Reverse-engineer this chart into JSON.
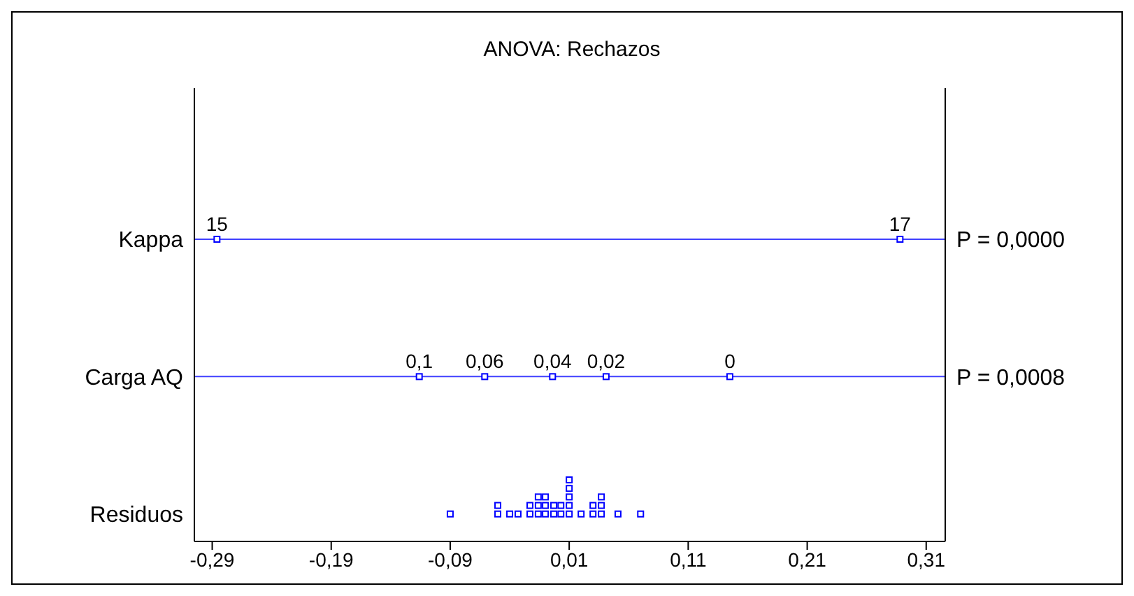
{
  "chart_data": {
    "type": "scatter",
    "orientation": "horizontal",
    "title": "ANOVA: Rechazos",
    "categories": [
      "Kappa",
      "Carga AQ",
      "Residuos"
    ],
    "series": [
      {
        "color": "#0000ff",
        "values": [
          -0.286,
          -0.116,
          -0.09
        ]
      },
      {
        "color": "#0000ff",
        "values": [
          0.288,
          -0.061,
          -0.05
        ]
      },
      {
        "color": "#0000ff",
        "values": [
          null,
          -0.004,
          -0.05
        ]
      },
      {
        "color": "#0000ff",
        "values": [
          null,
          0.041,
          -0.04
        ]
      },
      {
        "color": "#0000ff",
        "values": [
          null,
          0.145,
          -0.033
        ]
      },
      {
        "color": "#0000ff",
        "values": [
          null,
          null,
          -0.023
        ]
      },
      {
        "color": "#0000ff",
        "values": [
          null,
          null,
          -0.023
        ]
      },
      {
        "color": "#0000ff",
        "values": [
          null,
          null,
          -0.016
        ]
      },
      {
        "color": "#0000ff",
        "values": [
          null,
          null,
          -0.016
        ]
      },
      {
        "color": "#0000ff",
        "values": [
          null,
          null,
          -0.016
        ]
      },
      {
        "color": "#0000ff",
        "values": [
          null,
          null,
          -0.01
        ]
      },
      {
        "color": "#0000ff",
        "values": [
          null,
          null,
          -0.01
        ]
      },
      {
        "color": "#0000ff",
        "values": [
          null,
          null,
          -0.01
        ]
      },
      {
        "color": "#0000ff",
        "values": [
          null,
          null,
          -0.003
        ]
      },
      {
        "color": "#0000ff",
        "values": [
          null,
          null,
          -0.003
        ]
      },
      {
        "color": "#0000ff",
        "values": [
          null,
          null,
          0.003
        ]
      },
      {
        "color": "#0000ff",
        "values": [
          null,
          null,
          0.003
        ]
      },
      {
        "color": "#0000ff",
        "values": [
          null,
          null,
          0.01
        ]
      },
      {
        "color": "#0000ff",
        "values": [
          null,
          null,
          0.01
        ]
      },
      {
        "color": "#0000ff",
        "values": [
          null,
          null,
          0.01
        ]
      },
      {
        "color": "#0000ff",
        "values": [
          null,
          null,
          0.01
        ]
      },
      {
        "color": "#0000ff",
        "values": [
          null,
          null,
          0.01
        ]
      },
      {
        "color": "#0000ff",
        "values": [
          null,
          null,
          0.02
        ]
      },
      {
        "color": "#0000ff",
        "values": [
          null,
          null,
          0.03
        ]
      },
      {
        "color": "#0000ff",
        "values": [
          null,
          null,
          0.03
        ]
      },
      {
        "color": "#0000ff",
        "values": [
          null,
          null,
          0.037
        ]
      },
      {
        "color": "#0000ff",
        "values": [
          null,
          null,
          0.037
        ]
      },
      {
        "color": "#0000ff",
        "values": [
          null,
          null,
          0.037
        ]
      },
      {
        "color": "#0000ff",
        "values": [
          null,
          null,
          0.051
        ]
      },
      {
        "color": "#0000ff",
        "values": [
          null,
          null,
          0.07
        ]
      }
    ],
    "ref_lines": [
      {
        "axis": "y",
        "value": "Kappa",
        "color": "#4040ff"
      },
      {
        "axis": "y",
        "value": "Carga AQ",
        "color": "#4040ff"
      }
    ],
    "annotations": [
      "P = 0,0000",
      "P = 0,0008",
      {
        "text": "15",
        "x": -0.286,
        "y": "Kappa"
      },
      {
        "text": "17",
        "x": 0.288,
        "y": "Kappa"
      },
      {
        "text": "0,1",
        "x": -0.116,
        "y": "Carga AQ"
      },
      {
        "text": "0,06",
        "x": -0.061,
        "y": "Carga AQ"
      },
      {
        "text": "0,04",
        "x": -0.004,
        "y": "Carga AQ"
      },
      {
        "text": "0,02",
        "x": 0.041,
        "y": "Carga AQ"
      },
      {
        "text": "0",
        "x": 0.145,
        "y": "Carga AQ"
      }
    ],
    "xlim": [
      -0.305,
      0.326
    ],
    "xticks": [
      {
        "value": -0.29,
        "label": "-0,29"
      },
      {
        "value": -0.19,
        "label": "-0,19"
      },
      {
        "value": -0.09,
        "label": "-0,09"
      },
      {
        "value": 0.01,
        "label": "0,01"
      },
      {
        "value": 0.11,
        "label": "0,11"
      },
      {
        "value": 0.21,
        "label": "0,21"
      },
      {
        "value": 0.31,
        "label": "0,31"
      }
    ],
    "marker": "square",
    "grid": false,
    "legend": false
  }
}
